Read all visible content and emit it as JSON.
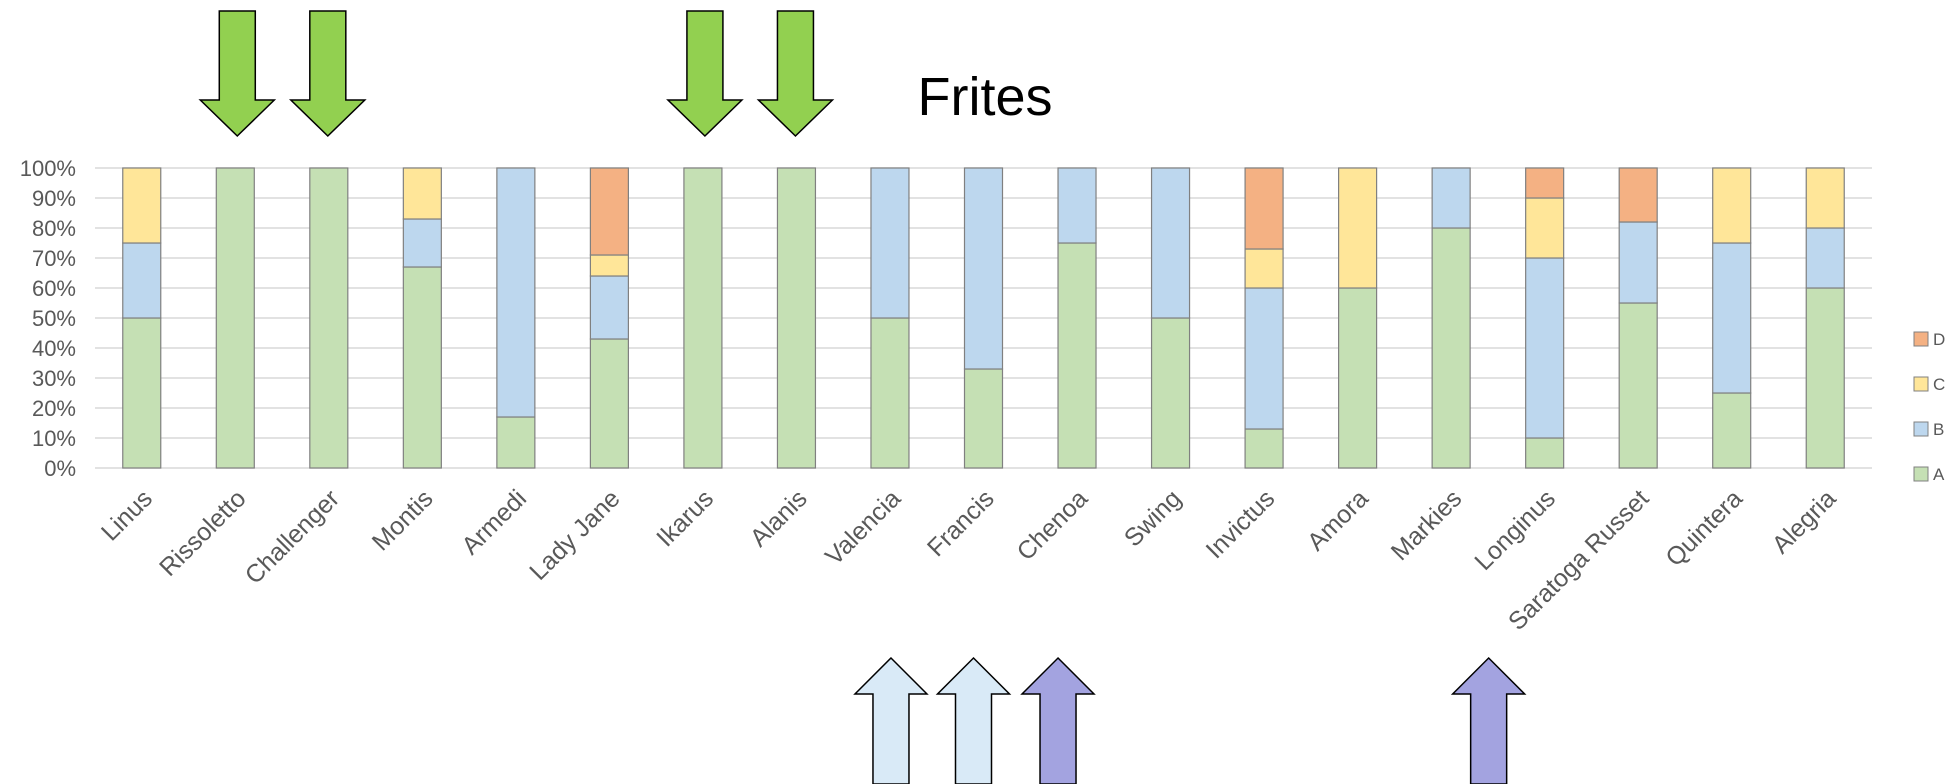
{
  "chart_data": {
    "type": "bar",
    "stacked": true,
    "percent": true,
    "title": "Frites",
    "xlabel": "",
    "ylabel": "",
    "ylim": [
      0,
      100
    ],
    "y_ticks": [
      "0%",
      "10%",
      "20%",
      "30%",
      "40%",
      "50%",
      "60%",
      "70%",
      "80%",
      "90%",
      "100%"
    ],
    "grid": true,
    "legend_position": "right",
    "categories": [
      "Linus",
      "Rissoletto",
      "Challenger",
      "Montis",
      "Armedi",
      "Lady Jane",
      "Ikarus",
      "Alanis",
      "Valencia",
      "Francis",
      "Chenoa",
      "Swing",
      "Invictus",
      "Amora",
      "Markies",
      "Longinus",
      "Saratoga Russet",
      "Quintera",
      "Alegria"
    ],
    "series": [
      {
        "name": "A",
        "color": "#c5e0b4",
        "values": [
          50,
          100,
          100,
          67,
          17,
          43,
          100,
          100,
          50,
          33,
          75,
          50,
          13,
          60,
          80,
          10,
          55,
          25,
          60
        ]
      },
      {
        "name": "B",
        "color": "#bdd7ee",
        "values": [
          25,
          0,
          0,
          16,
          83,
          21,
          0,
          0,
          50,
          67,
          25,
          50,
          47,
          0,
          20,
          60,
          27,
          50,
          20
        ]
      },
      {
        "name": "C",
        "color": "#ffe699",
        "values": [
          25,
          0,
          0,
          17,
          0,
          7,
          0,
          0,
          0,
          0,
          0,
          0,
          13,
          40,
          0,
          20,
          0,
          25,
          20
        ]
      },
      {
        "name": "D",
        "color": "#f4b183",
        "values": [
          0,
          0,
          0,
          0,
          0,
          29,
          0,
          0,
          0,
          0,
          0,
          0,
          27,
          0,
          0,
          10,
          18,
          0,
          0
        ]
      }
    ],
    "annotations": {
      "down_arrows": {
        "color": "#92d050",
        "categories": [
          "Rissoletto",
          "Challenger",
          "Ikarus",
          "Alanis"
        ]
      },
      "up_arrows_light": {
        "color": "#d9eaf7",
        "categories": [
          "Valencia",
          "Francis"
        ]
      },
      "up_arrows_purple": {
        "color": "#a3a3e0",
        "categories": [
          "Chenoa",
          "Longinus"
        ]
      }
    }
  },
  "colors": {
    "grid": "#d9d9d9",
    "bar_border": "#808080",
    "arrow_border": "#000000"
  }
}
